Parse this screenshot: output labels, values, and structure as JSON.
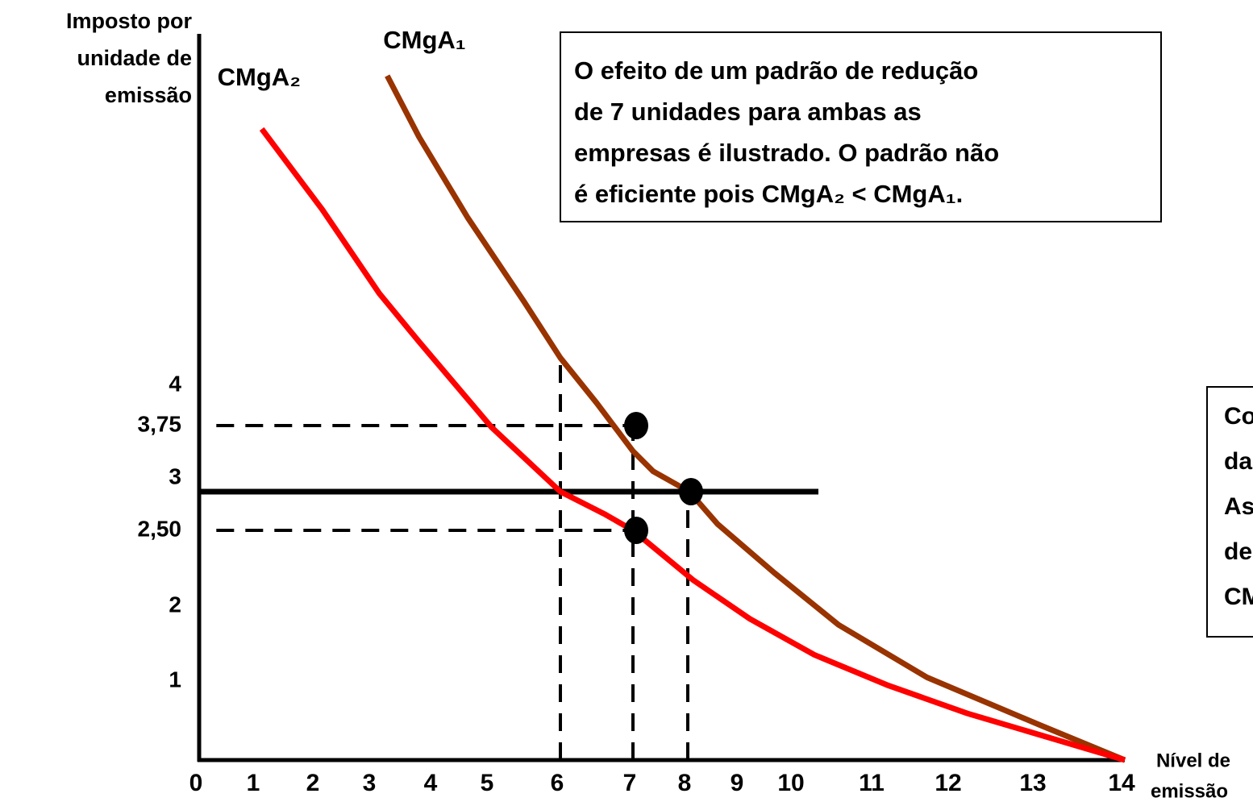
{
  "chart_data": {
    "type": "line",
    "y_label": [
      "Imposto  por",
      "unidade de",
      "emissão"
    ],
    "x_label": [
      "Nível de",
      "emissão"
    ],
    "xlim": [
      0,
      14
    ],
    "xticks": [
      0,
      1,
      2,
      3,
      4,
      5,
      6,
      7,
      8,
      9,
      10,
      11,
      12,
      13,
      14
    ],
    "ylim": [
      0,
      6
    ],
    "yticks": [
      1,
      2,
      {
        "value": 2.5,
        "label": "2,50"
      },
      3,
      {
        "value": 3.75,
        "label": "3,75"
      },
      4
    ],
    "series": [
      {
        "name": "CMgA₁",
        "color": "#993300",
        "x": [
          3.24,
          3.76,
          4.6,
          5.48,
          6,
          6.5,
          7,
          7.37,
          8.03,
          8.57,
          9.63,
          10.55,
          11.68,
          13.05,
          14
        ],
        "values": [
          5.92,
          5.54,
          5.04,
          4.52,
          4.17,
          3.89,
          3.46,
          3.23,
          3,
          2.58,
          2.22,
          1.75,
          1.05,
          0.44,
          0
        ]
      },
      {
        "name": "CMgA₂",
        "color": "#ff0000",
        "x": [
          1.09,
          2.11,
          3.11,
          3.76,
          5.02,
          6,
          6.61,
          7,
          8.11,
          9.18,
          10.25,
          11.16,
          12.19,
          14
        ],
        "values": [
          5.59,
          5.09,
          4.57,
          4.27,
          3.73,
          3,
          2.71,
          2.5,
          2.17,
          1.83,
          1.35,
          0.95,
          0.59,
          0
        ]
      }
    ],
    "tax_line": {
      "y": 3,
      "x": [
        0,
        10.3
      ]
    },
    "reference_lines": [
      {
        "x": [
          0.3,
          7
        ],
        "y": [
          3.75,
          3.75
        ]
      },
      {
        "x": [
          0.3,
          7
        ],
        "y": [
          2.5,
          2.5
        ]
      },
      {
        "x": [
          6,
          6
        ],
        "y": [
          0,
          4.14
        ]
      },
      {
        "x": [
          7,
          7
        ],
        "y": [
          0,
          3.75
        ]
      },
      {
        "x": [
          8,
          8
        ],
        "y": [
          0,
          3
        ]
      }
    ],
    "points": {
      "x": [
        7,
        7,
        8
      ],
      "y": [
        3.75,
        2.5,
        3
      ]
    },
    "annotation": [
      "O efeito de um padrão de redução",
      "de 7 unidades para ambas as",
      "empresas é ilustrado. O padrão não",
      "é eficiente pois CMgA₂ < CMgA₁."
    ],
    "side_note": [
      "Co",
      "da",
      "As",
      "de",
      "CM"
    ]
  }
}
